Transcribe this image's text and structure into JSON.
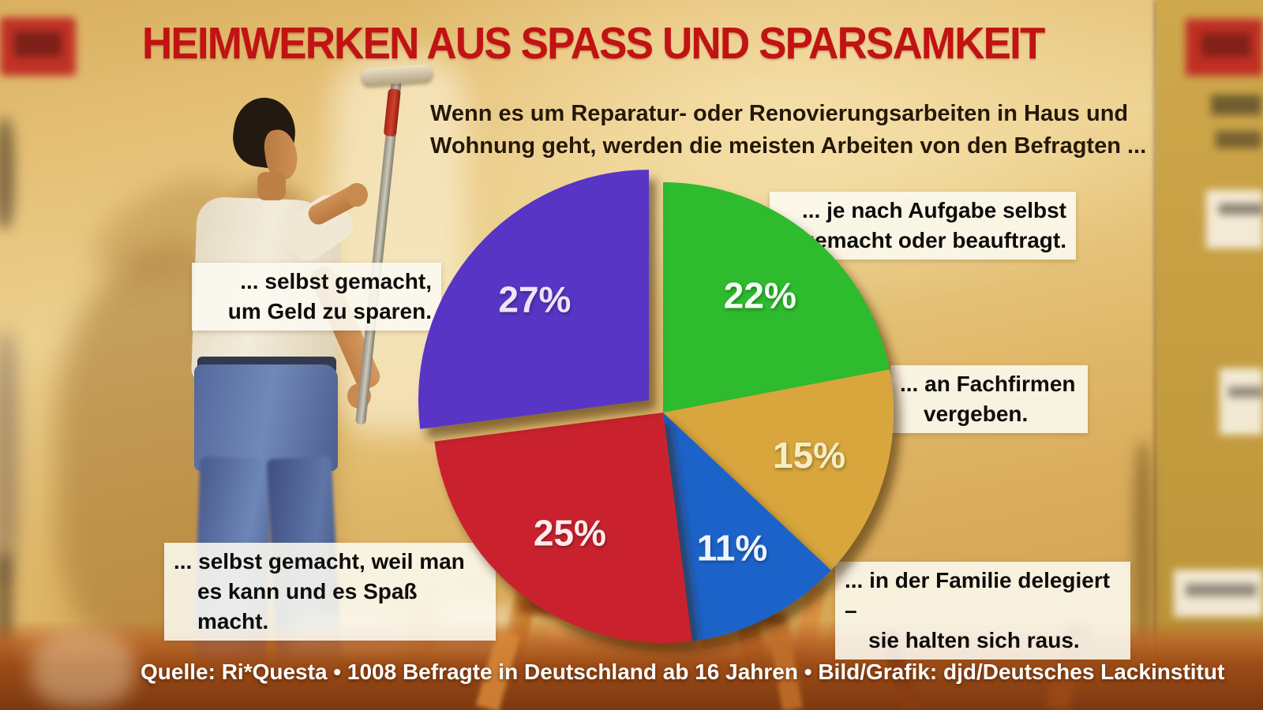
{
  "title": "HEIMWERKEN AUS SPASS UND SPARSAMKEIT",
  "subtitle": {
    "line1": "Wenn es um Reparatur- oder Renovierungsarbeiten in Haus und",
    "line2": "Wohnung geht, werden die meisten Arbeiten von den Befragten ..."
  },
  "callouts": {
    "green": {
      "line1": "... je nach Aufgabe selbst",
      "line2": "gemacht oder beauftragt."
    },
    "purple": {
      "line1": "... selbst gemacht,",
      "line2": "um Geld zu sparen."
    },
    "gold": {
      "line1": "... an Fachfirmen",
      "line2": "vergeben."
    },
    "red": {
      "line1": "... selbst gemacht, weil man",
      "line2": "es kann und es Spaß macht."
    },
    "blue": {
      "line1": "... in der Familie delegiert –",
      "line2": "sie halten sich raus."
    }
  },
  "source": "Quelle: Ri*Questa • 1008 Befragte in Deutschland ab 16 Jahren • Bild/Grafik: djd/Deutsches Lackinstitut",
  "colors": {
    "title_red": "#c11313",
    "callout_bg": "#fcf9f1",
    "source_text": "#ffffff"
  },
  "chart_data": {
    "type": "pie",
    "title": "Heimwerken aus Spass und Sparsamkeit",
    "unit": "%",
    "start_angle_deg": 0,
    "direction": "clockwise",
    "slices": [
      {
        "key": "je-nach-aufgabe",
        "label": "... je nach Aufgabe selbst gemacht oder beauftragt.",
        "value": 22,
        "color": "#2dbb2d",
        "label_color": "#f2fff2",
        "exploded": false
      },
      {
        "key": "fachfirmen",
        "label": "... an Fachfirmen vergeben.",
        "value": 15,
        "color": "#d8a63c",
        "label_color": "#f5eec2",
        "exploded": false
      },
      {
        "key": "familie",
        "label": "... in der Familie delegiert – sie halten sich raus.",
        "value": 11,
        "color": "#1a63c9",
        "label_color": "#eef4ff",
        "exploded": false
      },
      {
        "key": "spass",
        "label": "... selbst gemacht, weil man es kann und es Spaß macht.",
        "value": 25,
        "color": "#c9242f",
        "label_color": "#ffecec",
        "exploded": false
      },
      {
        "key": "geld-sparen",
        "label": "... selbst gemacht, um Geld zu sparen.",
        "value": 27,
        "color": "#5936c4",
        "label_color": "#ece4fa",
        "exploded": true
      }
    ]
  }
}
